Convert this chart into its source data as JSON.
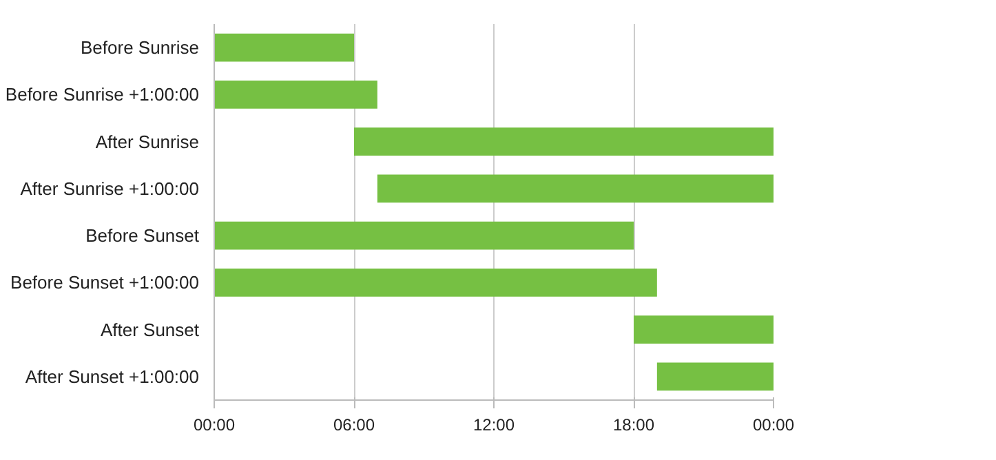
{
  "chart_data": {
    "type": "bar",
    "orientation": "horizontal",
    "categories": [
      "Before Sunrise",
      "Before Sunrise +1:00:00",
      "After Sunrise",
      "After Sunrise +1:00:00",
      "Before Sunset",
      "Before Sunset +1:00:00",
      "After Sunset",
      "After Sunset +1:00:00"
    ],
    "base": [
      0,
      0,
      6,
      7,
      0,
      0,
      18,
      19
    ],
    "values": [
      6,
      7,
      18,
      17,
      18,
      19,
      6,
      5
    ],
    "color": "#76c043",
    "xlim": [
      0,
      24
    ],
    "xticks": [
      {
        "value": 0,
        "label": "00:00"
      },
      {
        "value": 6,
        "label": "06:00"
      },
      {
        "value": 12,
        "label": "12:00"
      },
      {
        "value": 18,
        "label": "18:00"
      },
      {
        "value": 24,
        "label": "00:00"
      }
    ],
    "grid": "x"
  }
}
